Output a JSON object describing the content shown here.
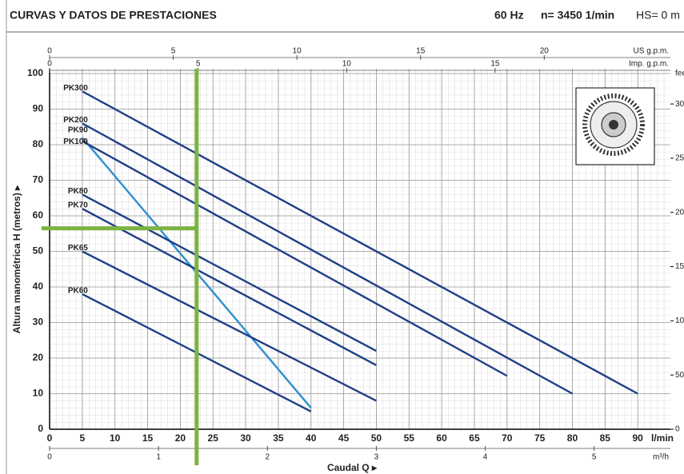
{
  "chart_data": {
    "type": "line",
    "title": "CURVAS Y DATOS DE PRESTACIONES",
    "header_items": [
      "60 Hz",
      "n= 3450 1/min",
      "HS= 0 m"
    ],
    "xlabel": "Caudal Q ▸",
    "x_unit": "l/min",
    "ylabel": "Altura manométrica H (metros) ▸",
    "xlim": [
      0,
      95
    ],
    "xticks": [
      0,
      5,
      10,
      15,
      20,
      25,
      30,
      35,
      40,
      45,
      50,
      55,
      60,
      65,
      70,
      75,
      80,
      85,
      90
    ],
    "ylim": [
      0,
      100
    ],
    "yticks": [
      0,
      10,
      20,
      30,
      40,
      50,
      60,
      70,
      80,
      90,
      100
    ],
    "y2label": "feet",
    "y2lim": [
      0,
      328.1
    ],
    "y2ticks": [
      0,
      50,
      100,
      150,
      200,
      250,
      300
    ],
    "grid": true,
    "secondary_x_axes": [
      {
        "position": "top",
        "label": "US g.p.m.",
        "lim": [
          0,
          25.1
        ],
        "ticks": [
          0,
          5,
          10,
          15,
          20
        ]
      },
      {
        "position": "top",
        "label": "Imp. g.p.m.",
        "lim": [
          0,
          20.9
        ],
        "ticks": [
          0,
          5,
          10,
          15
        ]
      },
      {
        "position": "bottom",
        "label": "m³/h",
        "lim": [
          0,
          5.7
        ],
        "ticks": [
          0,
          1,
          2,
          3,
          4,
          5
        ]
      }
    ],
    "series": [
      {
        "name": "PK300",
        "color": "#1f3f86",
        "x": [
          5,
          90
        ],
        "values": [
          95,
          10
        ]
      },
      {
        "name": "PK200",
        "color": "#1f3f86",
        "x": [
          5,
          80
        ],
        "values": [
          86,
          10
        ]
      },
      {
        "name": "PK90",
        "color": "#2e8fd0",
        "x": [
          5,
          40
        ],
        "values": [
          82,
          6
        ]
      },
      {
        "name": "PK100",
        "color": "#1f3f86",
        "x": [
          5,
          70
        ],
        "values": [
          81,
          15
        ]
      },
      {
        "name": "PK80",
        "color": "#1f3f86",
        "x": [
          5,
          50
        ],
        "values": [
          66,
          22
        ]
      },
      {
        "name": "PK70",
        "color": "#1f3f86",
        "x": [
          5,
          50
        ],
        "values": [
          62,
          18
        ]
      },
      {
        "name": "PK65",
        "color": "#1f3f86",
        "x": [
          5,
          50
        ],
        "values": [
          50,
          8
        ]
      },
      {
        "name": "PK60",
        "color": "#1f3f86",
        "x": [
          5,
          40
        ],
        "values": [
          38,
          5
        ]
      }
    ],
    "reference": {
      "x": 22.5,
      "y": 56.5,
      "color": "#7cb342"
    }
  }
}
